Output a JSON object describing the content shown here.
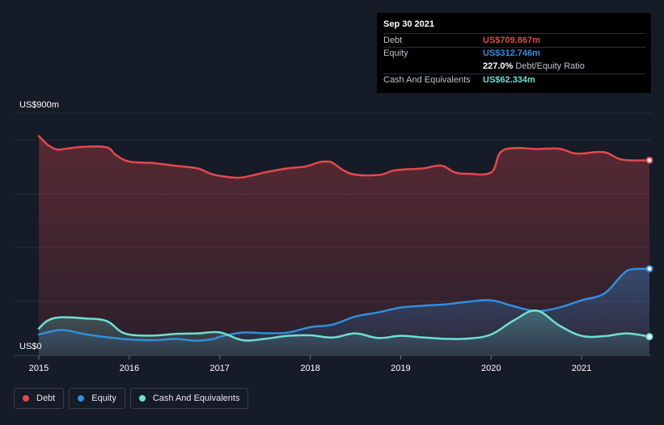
{
  "tooltip": {
    "date": "Sep 30 2021",
    "debt_label": "Debt",
    "debt_value": "US$709.867m",
    "equity_label": "Equity",
    "equity_value": "US$312.746m",
    "ratio_value": "227.0%",
    "ratio_label": "Debt/Equity Ratio",
    "cash_label": "Cash And Equivalents",
    "cash_value": "US$62.334m"
  },
  "legend": [
    {
      "label": "Debt",
      "color": "#e5484d"
    },
    {
      "label": "Equity",
      "color": "#2f8fe0"
    },
    {
      "label": "Cash And Equivalents",
      "color": "#6ee0d0"
    }
  ],
  "chart_data": {
    "type": "area",
    "y_top_label": "US$900m",
    "y_bottom_label": "US$0",
    "ylim": [
      0,
      900
    ],
    "xlim": [
      2015.0,
      2021.75
    ],
    "x_ticks": [
      "2015",
      "2016",
      "2017",
      "2018",
      "2019",
      "2020",
      "2021"
    ],
    "x_tick_values": [
      2015,
      2016,
      2017,
      2018,
      2019,
      2020,
      2021
    ],
    "grid": true,
    "series": [
      {
        "name": "Debt",
        "color": "#e5484d",
        "x": [
          2015.0,
          2015.1,
          2015.2,
          2015.3,
          2015.5,
          2015.75,
          2015.85,
          2016.0,
          2016.25,
          2016.5,
          2016.75,
          2016.9,
          2017.0,
          2017.2,
          2017.35,
          2017.5,
          2017.75,
          2017.95,
          2018.1,
          2018.2,
          2018.25,
          2018.45,
          2018.75,
          2018.9,
          2019.0,
          2019.25,
          2019.45,
          2019.6,
          2019.75,
          2020.0,
          2020.1,
          2020.25,
          2020.5,
          2020.75,
          2020.9,
          2021.0,
          2021.25,
          2021.45,
          2021.75
        ],
        "values": [
          815,
          782,
          765,
          768,
          775,
          773,
          745,
          720,
          715,
          705,
          695,
          675,
          667,
          660,
          668,
          680,
          695,
          702,
          718,
          720,
          715,
          675,
          670,
          685,
          690,
          695,
          705,
          680,
          675,
          680,
          753,
          770,
          767,
          768,
          752,
          750,
          755,
          727,
          725
        ]
      },
      {
        "name": "Equity",
        "color": "#2f8fe0",
        "x": [
          2015.0,
          2015.25,
          2015.5,
          2015.75,
          2016.0,
          2016.3,
          2016.5,
          2016.75,
          2016.95,
          2017.0,
          2017.25,
          2017.5,
          2017.75,
          2018.0,
          2018.25,
          2018.5,
          2018.75,
          2019.0,
          2019.25,
          2019.5,
          2019.75,
          2020.0,
          2020.25,
          2020.5,
          2020.75,
          2021.0,
          2021.25,
          2021.45,
          2021.55,
          2021.75
        ],
        "values": [
          78,
          95,
          80,
          68,
          60,
          57,
          62,
          55,
          63,
          70,
          85,
          83,
          85,
          105,
          115,
          145,
          160,
          178,
          185,
          190,
          200,
          205,
          183,
          165,
          178,
          205,
          230,
          300,
          320,
          322
        ]
      },
      {
        "name": "Cash And Equivalents",
        "color": "#6ee0d0",
        "x": [
          2015.0,
          2015.1,
          2015.25,
          2015.5,
          2015.75,
          2015.95,
          2016.25,
          2016.5,
          2016.75,
          2017.0,
          2017.25,
          2017.5,
          2017.75,
          2018.0,
          2018.25,
          2018.5,
          2018.75,
          2019.0,
          2019.25,
          2019.5,
          2019.75,
          2020.0,
          2020.25,
          2020.5,
          2020.75,
          2021.0,
          2021.25,
          2021.5,
          2021.75
        ],
        "values": [
          100,
          130,
          142,
          138,
          128,
          82,
          74,
          80,
          82,
          86,
          57,
          62,
          73,
          75,
          67,
          82,
          65,
          73,
          67,
          62,
          63,
          78,
          130,
          167,
          112,
          73,
          72,
          82,
          70
        ]
      }
    ]
  }
}
